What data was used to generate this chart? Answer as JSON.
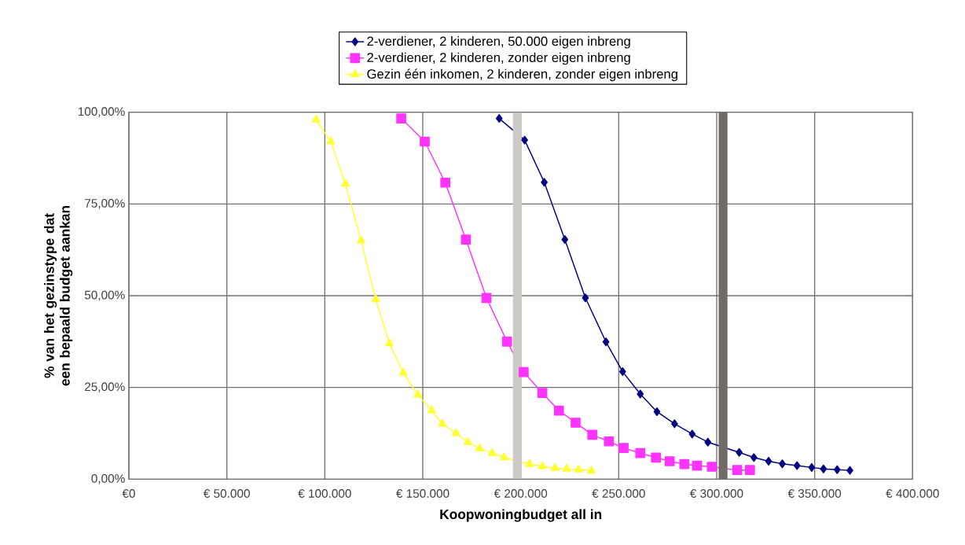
{
  "chart_data": {
    "type": "line",
    "xlabel": "Koopwoningbudget all in",
    "ylabel": "% van het gezinstype dat een bepaald budget aankan",
    "xlim": [
      0,
      400000
    ],
    "ylim": [
      0,
      100
    ],
    "xticks": [
      {
        "value": 0,
        "label": "€0"
      },
      {
        "value": 50000,
        "label": "€ 50.000"
      },
      {
        "value": 100000,
        "label": "€ 100.000"
      },
      {
        "value": 150000,
        "label": "€ 150.000"
      },
      {
        "value": 200000,
        "label": "€ 200.000"
      },
      {
        "value": 250000,
        "label": "€ 250.000"
      },
      {
        "value": 300000,
        "label": "€ 300.000"
      },
      {
        "value": 350000,
        "label": "€ 350.000"
      },
      {
        "value": 400000,
        "label": "€ 400.000"
      }
    ],
    "yticks": [
      {
        "value": 0,
        "label": "0,00%"
      },
      {
        "value": 25,
        "label": "25,00%"
      },
      {
        "value": 50,
        "label": "50,00%"
      },
      {
        "value": 75,
        "label": "75,00%"
      },
      {
        "value": 100,
        "label": "100,00%"
      }
    ],
    "grid": true,
    "legend": "top",
    "series": [
      {
        "name": "2-verdiener, 2 kinderen, 50.000 eigen inbreng",
        "color": "#000080",
        "marker": "diamond",
        "x": [
          189000,
          202000,
          212000,
          222500,
          233000,
          243500,
          252000,
          261000,
          269500,
          278500,
          287500,
          295500,
          311500,
          319000,
          326500,
          333500,
          341000,
          348500,
          354500,
          361500,
          368000
        ],
        "values": [
          98.3,
          92.4,
          80.9,
          65.3,
          49.4,
          37.4,
          29.3,
          23.2,
          18.4,
          15.1,
          12.3,
          10.1,
          7.3,
          5.9,
          4.9,
          4.2,
          3.7,
          3.2,
          2.8,
          2.6,
          2.4
        ]
      },
      {
        "name": "2-verdiener, 2 kinderen, zonder eigen inbreng",
        "color": "#ff33ff",
        "marker": "square",
        "x": [
          139000,
          151000,
          161500,
          172000,
          182500,
          193000,
          201500,
          211000,
          219500,
          228000,
          236500,
          245000,
          252500,
          261000,
          269000,
          276000,
          283500,
          290000,
          297500,
          310500,
          317000
        ],
        "values": [
          98.3,
          92,
          80.8,
          65.3,
          49.4,
          37.5,
          29.2,
          23.5,
          18.7,
          15.4,
          12.1,
          10.3,
          8.5,
          7.1,
          5.9,
          4.9,
          4.1,
          3.7,
          3.4,
          2.5,
          2.5
        ]
      },
      {
        "name": "Gezin één inkomen, 2 kinderen, zonder eigen inbreng",
        "color": "#ffff33",
        "marker": "triangle",
        "x": [
          95500,
          103000,
          110500,
          118500,
          126000,
          133000,
          140000,
          147500,
          154500,
          160000,
          167000,
          173000,
          179000,
          185500,
          191500,
          204500,
          211000,
          217500,
          223500,
          229500,
          236000
        ],
        "values": [
          98,
          92,
          80.5,
          65,
          49,
          37,
          29,
          23,
          18.7,
          15.1,
          12.5,
          10.1,
          8.4,
          7.1,
          5.9,
          4.1,
          3.5,
          3.0,
          2.8,
          2.6,
          2.3
        ]
      }
    ],
    "bands": [
      {
        "axis": "x",
        "from": 196000,
        "to": 200500,
        "color": "#cdc9c5"
      },
      {
        "axis": "x",
        "from": 301000,
        "to": 305500,
        "color": "#706b69"
      }
    ]
  }
}
